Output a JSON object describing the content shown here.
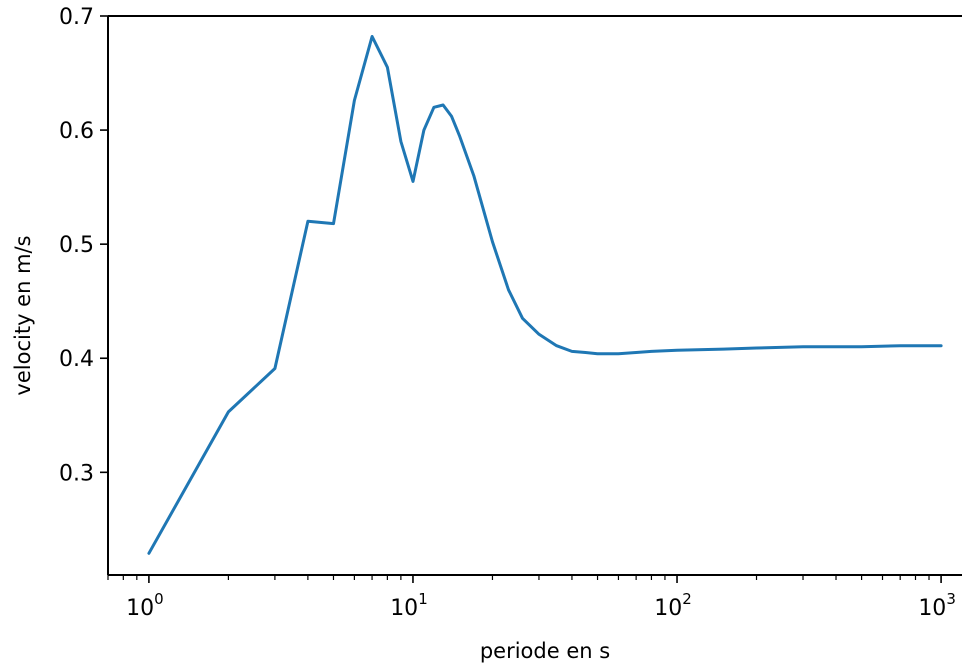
{
  "chart_data": {
    "type": "line",
    "title": "",
    "xlabel": "periode en s",
    "ylabel": "velocity en m/s",
    "xscale": "log",
    "xlim": [
      0.7,
      1200
    ],
    "ylim": [
      0.21,
      0.7
    ],
    "grid": false,
    "x_ticks": [
      {
        "value": 1,
        "base": "10",
        "exp": "0"
      },
      {
        "value": 10,
        "base": "10",
        "exp": "1"
      },
      {
        "value": 100,
        "base": "10",
        "exp": "2"
      },
      {
        "value": 1000,
        "base": "10",
        "exp": "3"
      }
    ],
    "y_ticks": [
      {
        "value": 0.3,
        "label": "0.3"
      },
      {
        "value": 0.4,
        "label": "0.4"
      },
      {
        "value": 0.5,
        "label": "0.5"
      },
      {
        "value": 0.6,
        "label": "0.6"
      },
      {
        "value": 0.7,
        "label": "0.7"
      }
    ],
    "series": [
      {
        "color": "#1f77b4",
        "x": [
          1,
          2,
          3,
          4,
          5,
          6,
          7,
          8,
          9,
          10,
          11,
          12,
          13,
          14,
          15,
          17,
          20,
          23,
          26,
          30,
          35,
          40,
          45,
          50,
          60,
          70,
          80,
          100,
          150,
          200,
          300,
          500,
          700,
          1000
        ],
        "y": [
          0.229,
          0.353,
          0.391,
          0.52,
          0.518,
          0.626,
          0.682,
          0.655,
          0.59,
          0.555,
          0.6,
          0.62,
          0.622,
          0.612,
          0.595,
          0.56,
          0.502,
          0.46,
          0.435,
          0.421,
          0.411,
          0.406,
          0.405,
          0.404,
          0.404,
          0.405,
          0.406,
          0.407,
          0.408,
          0.409,
          0.41,
          0.41,
          0.411,
          0.411
        ]
      }
    ]
  }
}
